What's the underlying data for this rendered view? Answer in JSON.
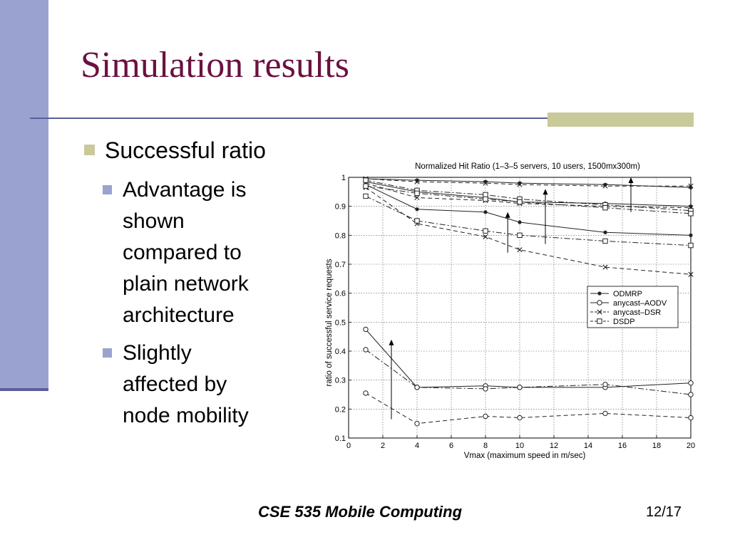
{
  "slide": {
    "title": "Simulation results",
    "bullet": "Successful ratio",
    "sub_bullets": [
      [
        "Advantage is",
        "shown",
        "compared to",
        "plain network",
        "architecture"
      ],
      [
        "Slightly",
        "affected by",
        "node mobility"
      ]
    ],
    "footer": "CSE 535 Mobile Computing",
    "page": "12/17"
  },
  "colors": {
    "title": "#6b1140",
    "left_bar": "#9aa2cf",
    "accent_block": "#c9c99a"
  },
  "chart_data": {
    "type": "line",
    "title": "Normalized Hit Ratio (1–3–5 servers, 10 users, 1500mx300m)",
    "xlabel": "Vmax (maximum speed in m/sec)",
    "ylabel": "ratio of successful service requests",
    "xlim": [
      0,
      20
    ],
    "ylim": [
      0.1,
      1
    ],
    "xticks": [
      "0",
      "2",
      "4",
      "6",
      "8",
      "10",
      "12",
      "14",
      "16",
      "18",
      "20"
    ],
    "yticks": [
      "0.1",
      "0.2",
      "0.3",
      "0.4",
      "0.5",
      "0.6",
      "0.7",
      "0.8",
      "0.9",
      "1"
    ],
    "grid": true,
    "legend_position": "right",
    "legend": [
      "ODMRP",
      "anycast–AODV",
      "anycast–DSR",
      "DSDP"
    ],
    "x": [
      1,
      4,
      8,
      10,
      15,
      20
    ],
    "series": [
      {
        "name": "ODMRP",
        "marker": "dot",
        "dash": "solid",
        "servers": 5,
        "values": [
          0.995,
          0.99,
          0.985,
          0.98,
          0.975,
          0.965
        ]
      },
      {
        "name": "ODMRP",
        "marker": "dot",
        "dash": "solid",
        "servers": 3,
        "values": [
          0.985,
          0.95,
          0.93,
          0.915,
          0.91,
          0.9
        ]
      },
      {
        "name": "ODMRP",
        "marker": "dot",
        "dash": "solid",
        "servers": 1,
        "values": [
          0.975,
          0.89,
          0.88,
          0.845,
          0.81,
          0.8
        ]
      },
      {
        "name": "anycast–AODV",
        "marker": "circle",
        "dash": "solid",
        "servers": 5,
        "values": [
          0.475,
          0.275,
          0.28,
          0.275,
          0.275,
          0.29
        ]
      },
      {
        "name": "anycast–AODV",
        "marker": "circle",
        "dash": "dashdot",
        "servers": 3,
        "values": [
          0.405,
          0.275,
          0.27,
          0.275,
          0.285,
          0.25
        ]
      },
      {
        "name": "anycast–AODV",
        "marker": "circle",
        "dash": "dashed",
        "servers": 1,
        "values": [
          0.255,
          0.15,
          0.175,
          0.17,
          0.185,
          0.17
        ]
      },
      {
        "name": "anycast–DSR",
        "marker": "x",
        "dash": "dashed",
        "servers": 5,
        "values": [
          0.995,
          0.985,
          0.98,
          0.975,
          0.97,
          0.97
        ]
      },
      {
        "name": "anycast–DSR",
        "marker": "x",
        "dash": "dashed",
        "servers": 3,
        "values": [
          0.98,
          0.93,
          0.92,
          0.91,
          0.9,
          0.895
        ]
      },
      {
        "name": "anycast–DSR",
        "marker": "x",
        "dash": "dashed",
        "servers": 1,
        "values": [
          0.965,
          0.84,
          0.795,
          0.75,
          0.69,
          0.665
        ]
      },
      {
        "name": "DSDP",
        "marker": "square",
        "dash": "dashdot",
        "servers": 5,
        "values": [
          0.99,
          0.955,
          0.94,
          0.925,
          0.905,
          0.885
        ]
      },
      {
        "name": "DSDP",
        "marker": "square",
        "dash": "dashdot",
        "servers": 3,
        "values": [
          0.97,
          0.945,
          0.925,
          0.915,
          0.895,
          0.875
        ]
      },
      {
        "name": "DSDP",
        "marker": "square",
        "dash": "dashdot",
        "servers": 1,
        "values": [
          0.935,
          0.85,
          0.815,
          0.8,
          0.78,
          0.765
        ]
      }
    ]
  }
}
